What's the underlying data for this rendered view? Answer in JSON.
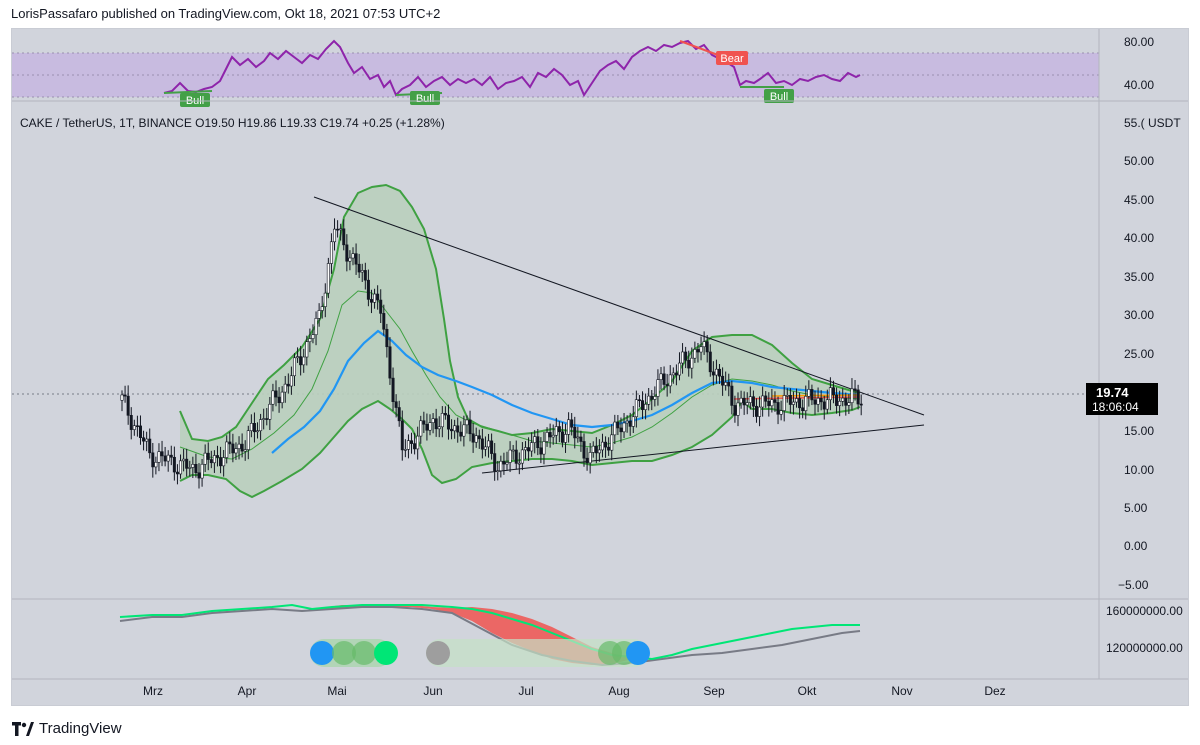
{
  "header": {
    "text": "LorisPassafaro published on TradingView.com, Okt 18, 2021 07:53 UTC+2"
  },
  "footer": {
    "logo_text": "TradingView",
    "logo_icon": "tradingview-logo-icon"
  },
  "colors": {
    "background": "#d1d4dc",
    "rsi_band": "#c8bbe0",
    "rsi_line": "#8e24aa",
    "bollinger": "#3fa142",
    "bollinger_fill": "#b9cfbd",
    "ma_blue": "#2196f3",
    "bull": "#43a047",
    "bear": "#f05350",
    "price_tag": "#000000"
  },
  "chart_data": [
    {
      "type": "line",
      "name": "rsi-pane",
      "y_ticks": [
        "80.00",
        "40.00"
      ],
      "ylim": [
        30,
        90
      ],
      "band": [
        30,
        70
      ],
      "signals": [
        {
          "label": "Bull",
          "x": "2021-03-20"
        },
        {
          "label": "Bull",
          "x": "2021-05-26"
        },
        {
          "label": "Bear",
          "x": "2021-09-05"
        },
        {
          "label": "Bull",
          "x": "2021-09-22"
        }
      ]
    },
    {
      "type": "line",
      "name": "price-pane",
      "legend": "CAKE / TetherUS, 1T, BINANCE  O19.50  H19.86  L19.33  C19.74  +0.25 (+1.28%)",
      "y_unit": "USDT",
      "y_top_label": "55.( USDT",
      "y_ticks": [
        "50.00",
        "45.00",
        "40.00",
        "35.00",
        "30.00",
        "25.00",
        "20.00",
        "15.00",
        "10.00",
        "5.00",
        "0.00",
        "−5.00"
      ],
      "ylim": [
        -5,
        55
      ],
      "last_price": "19.74",
      "countdown": "18:06:04",
      "x_ticks": [
        "Mrz",
        "Apr",
        "Mai",
        "Jun",
        "Jul",
        "Aug",
        "Sep",
        "Okt",
        "Nov",
        "Dez"
      ],
      "series": [
        {
          "x": [
            "2021-02-20",
            "2021-03-01",
            "2021-03-15",
            "2021-04-01",
            "2021-04-15",
            "2021-04-25",
            "2021-04-30",
            "2021-05-07",
            "2021-05-15",
            "2021-05-22",
            "2021-06-01",
            "2021-06-15",
            "2021-06-22",
            "2021-07-01",
            "2021-07-15",
            "2021-07-22",
            "2021-08-01",
            "2021-08-15",
            "2021-08-27",
            "2021-09-07",
            "2021-09-20",
            "2021-10-01",
            "2021-10-18"
          ],
          "values": [
            19.5,
            12.5,
            10.5,
            14,
            22,
            30,
            42,
            37,
            31,
            13,
            17,
            15,
            11,
            13,
            16,
            12,
            16,
            22,
            26.5,
            19,
            19,
            19.5,
            19.74
          ]
        }
      ]
    },
    {
      "type": "line",
      "name": "volume-pane",
      "y_ticks": [
        "160000000.00",
        "120000000.00"
      ],
      "ylim": [
        100000000,
        180000000
      ]
    }
  ]
}
